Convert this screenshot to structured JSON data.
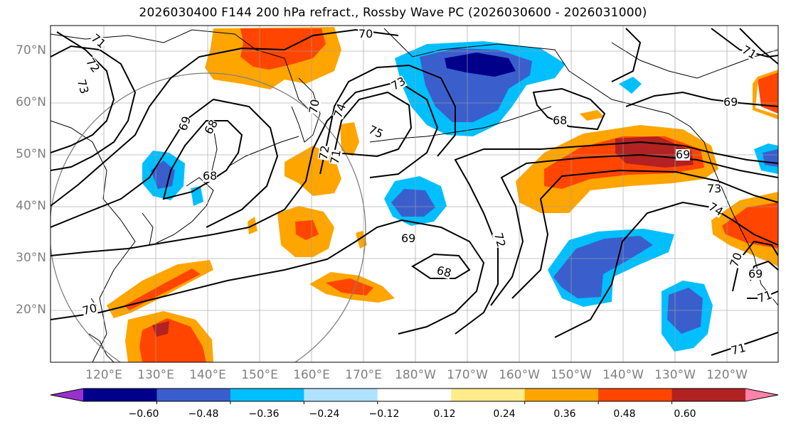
{
  "title": "2026030400 F144 200 hPa refract., Rossby Wave PC (2026030600 - 2026031000)",
  "map": {
    "lat_labels": [
      "70°N",
      "60°N",
      "50°N",
      "40°N",
      "30°N",
      "20°N"
    ],
    "lon_labels": [
      "120°E",
      "130°E",
      "140°E",
      "150°E",
      "160°E",
      "170°E",
      "180°W",
      "170°W",
      "160°W",
      "150°W",
      "140°W",
      "130°W",
      "120°W"
    ],
    "contour_labels": [
      "70",
      "73",
      "72",
      "71",
      "69",
      "68",
      "68",
      "70",
      "74",
      "75",
      "71",
      "72",
      "73",
      "69",
      "68",
      "69",
      "72",
      "68",
      "73",
      "74",
      "70",
      "69",
      "71",
      "71",
      "70",
      "71",
      "69"
    ],
    "contour_color": "#000000",
    "coast_color": "#000000",
    "grid_color": "#a0a0a0"
  },
  "colorbar": {
    "colors": [
      "#9932cc",
      "#00008b",
      "#3a5fcd",
      "#00bfff",
      "#b0e2ff",
      "#ffffff",
      "#ffec8b",
      "#ffa500",
      "#ff4500",
      "#b22222",
      "#ff82ab"
    ],
    "tick_labels": [
      "−0.60",
      "−0.48",
      "−0.36",
      "−0.24",
      "−0.12",
      "0.12",
      "0.24",
      "0.36",
      "0.48",
      "0.60"
    ]
  }
}
